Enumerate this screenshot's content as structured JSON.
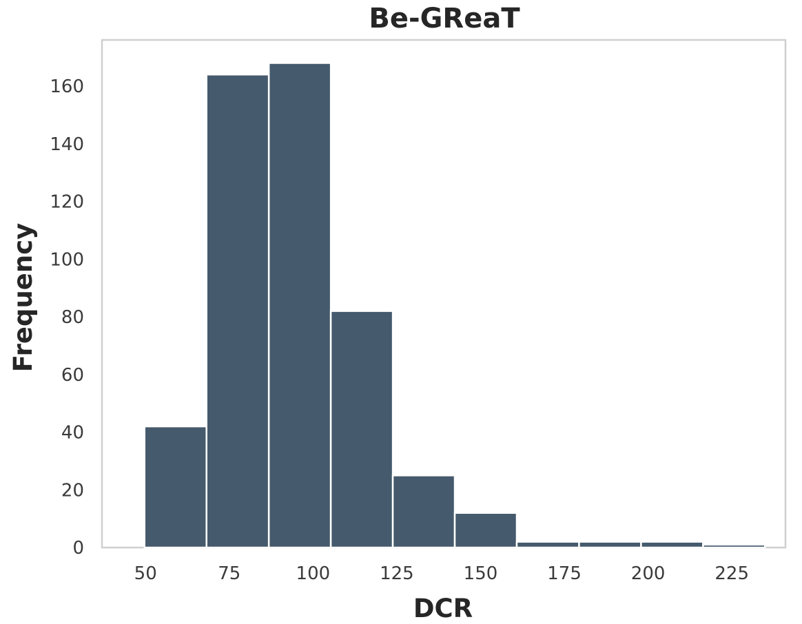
{
  "chart_data": {
    "type": "bar",
    "subtype": "histogram",
    "title": "Be-GReaT",
    "xlabel": "DCR",
    "ylabel": "Frequency",
    "bar_color": "#455a6c",
    "frame_color": "#cfcfcf",
    "grid": false,
    "xlim": [
      37,
      241
    ],
    "ylim": [
      0,
      176
    ],
    "x_ticks": [
      50,
      75,
      100,
      125,
      150,
      175,
      200,
      225
    ],
    "y_ticks": [
      0,
      20,
      40,
      60,
      80,
      100,
      120,
      140,
      160
    ],
    "bins": [
      {
        "start": 49.7,
        "end": 68.2,
        "count": 42
      },
      {
        "start": 68.2,
        "end": 86.8,
        "count": 164
      },
      {
        "start": 86.8,
        "end": 105.3,
        "count": 168
      },
      {
        "start": 105.3,
        "end": 123.8,
        "count": 82
      },
      {
        "start": 123.8,
        "end": 142.3,
        "count": 25
      },
      {
        "start": 142.3,
        "end": 160.8,
        "count": 12
      },
      {
        "start": 160.8,
        "end": 179.4,
        "count": 2
      },
      {
        "start": 179.4,
        "end": 197.9,
        "count": 2
      },
      {
        "start": 197.9,
        "end": 216.4,
        "count": 2
      },
      {
        "start": 216.4,
        "end": 234.9,
        "count": 1
      }
    ]
  }
}
